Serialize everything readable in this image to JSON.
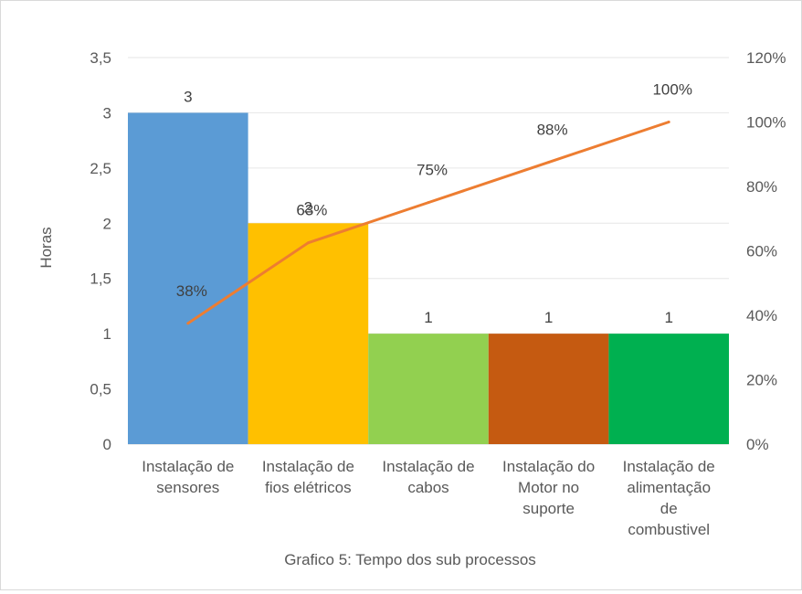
{
  "chart_data": {
    "type": "bar",
    "title": "",
    "caption": "Grafico 5: Tempo dos sub processos",
    "ylabel": "Horas",
    "y2label": "",
    "ylim": [
      0,
      3.5
    ],
    "y2lim": [
      0,
      1.2
    ],
    "y_ticks": [
      "0",
      "0,5",
      "1",
      "1,5",
      "2",
      "2,5",
      "3",
      "3,5"
    ],
    "y2_ticks": [
      "0%",
      "20%",
      "40%",
      "60%",
      "80%",
      "100%",
      "120%"
    ],
    "grid": true,
    "legend": "none",
    "categories": [
      [
        "Instalação de",
        "sensores"
      ],
      [
        "Instalação de",
        "fios elétricos"
      ],
      [
        "Instalação de",
        "cabos"
      ],
      [
        "Instalação do",
        "Motor no",
        "suporte"
      ],
      [
        "Instalação de",
        "alimentação",
        "de",
        "combustivel"
      ]
    ],
    "series": [
      {
        "type": "bar",
        "axis": "left",
        "values": [
          3,
          2,
          1,
          1,
          1
        ],
        "labels": [
          "3",
          "2",
          "1",
          "1",
          "1"
        ],
        "colors": [
          "#5b9bd5",
          "#ffc000",
          "#92d050",
          "#c55a11",
          "#00b050"
        ]
      },
      {
        "type": "line",
        "axis": "right",
        "values": [
          0.375,
          0.625,
          0.75,
          0.875,
          1.0
        ],
        "labels": [
          "38%",
          "63%",
          "75%",
          "88%",
          "100%"
        ],
        "color": "#ed7d31"
      }
    ]
  }
}
